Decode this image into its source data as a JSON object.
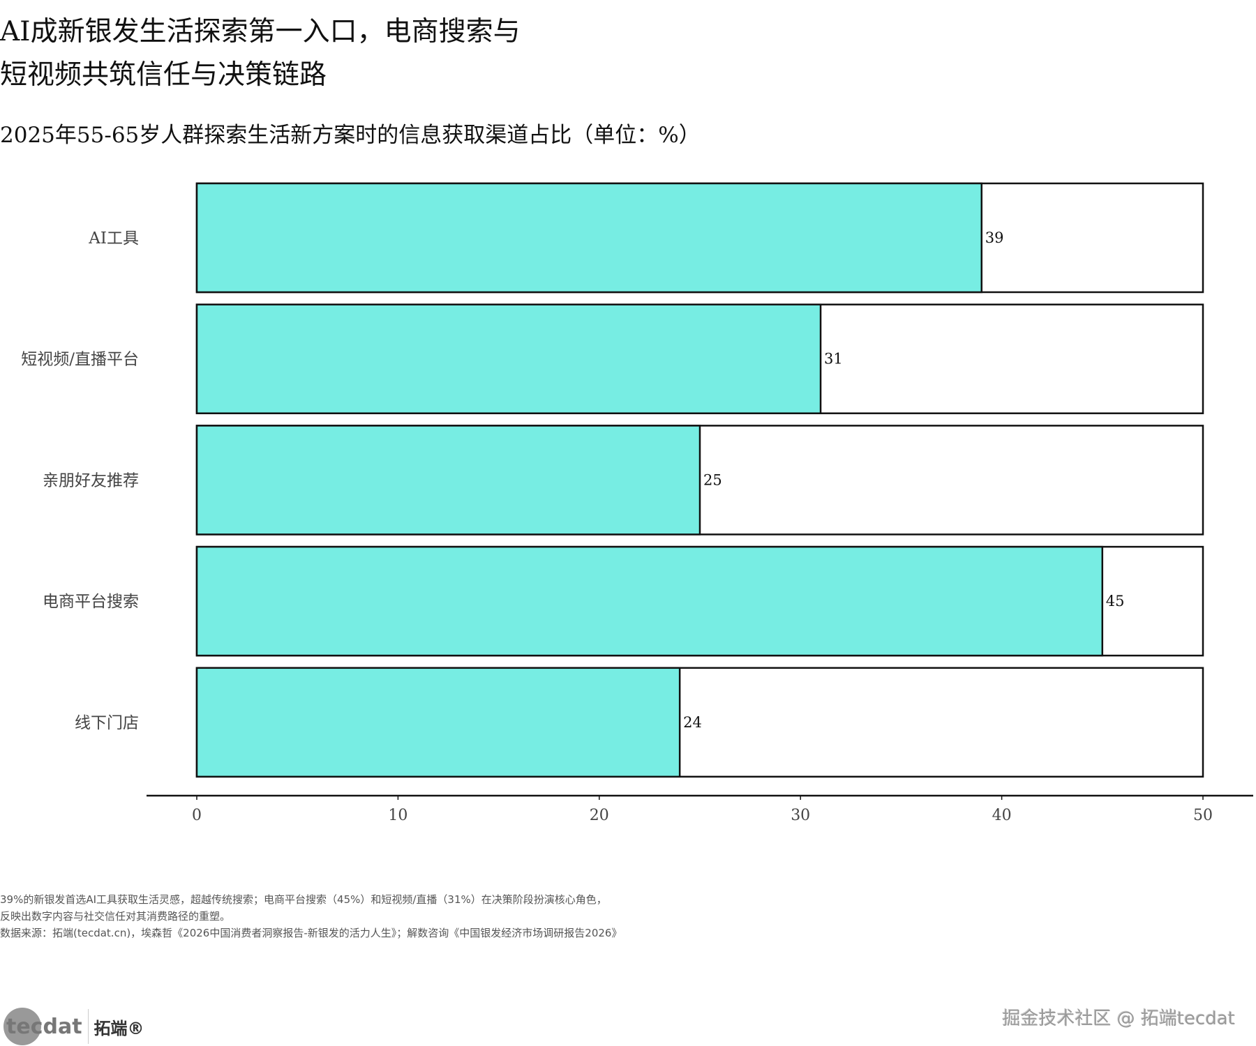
{
  "title_lines": [
    "AI成新银发生活探索第一入口，电商搜索与",
    "短视频共筑信任与决策链路"
  ],
  "chart_data": {
    "type": "bar",
    "orientation": "horizontal",
    "title": "2025年55-65岁人群探索生活新方案时的信息获取渠道占比（单位：%）",
    "categories": [
      "AI工具",
      "短视频/直播平台",
      "亲朋好友推荐",
      "电商平台搜索",
      "线下门店"
    ],
    "values": [
      39,
      31,
      25,
      45,
      24
    ],
    "xlim": [
      0,
      50
    ],
    "xticks": [
      0,
      10,
      20,
      30,
      40,
      50
    ],
    "xlabel": "",
    "ylabel": "",
    "bar_color": "#77EDE3",
    "background_bar": true,
    "grid": false
  },
  "notes": [
    "39%的新银发首选AI工具获取生活灵感，超越传统搜索；电商平台搜索（45%）和短视频/直播（31%）在决策阶段扮演核心角色，",
    "反映出数字内容与社交信任对其消费路径的重塑。",
    "数据来源：拓端(tecdat.cn)，埃森哲《2026中国消费者洞察报告-新银发的活力人生》；解数咨询《中国银发经济市场调研报告2026》"
  ],
  "logo": {
    "word": "tecdat",
    "cn": "拓端®"
  },
  "watermark": "掘金技术社区 @ 拓端tecdat"
}
